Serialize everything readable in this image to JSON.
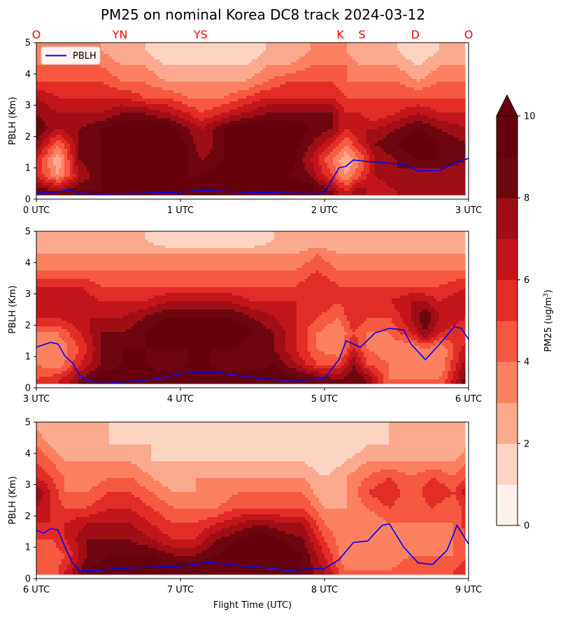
{
  "title": "PM25 on nominal Korea DC8 track 2024-03-12",
  "xlabel": "Flight Time (UTC)",
  "colorbar": {
    "label_prefix": "PM25 (ug/m",
    "label_sup": "3",
    "label_suffix": ")",
    "levels": [
      0,
      1,
      2,
      3,
      4,
      5,
      6,
      7,
      8,
      9,
      10
    ],
    "extend": "max",
    "ticks": [
      "0",
      "2",
      "4",
      "6",
      "8",
      "10"
    ],
    "colors": [
      "#fff0e9",
      "#fdd4c2",
      "#fcaa8e",
      "#fc8161",
      "#f65840",
      "#e22d26",
      "#c3161b",
      "#9f0e15",
      "#6d0610",
      "#67000d"
    ]
  },
  "waypoints": [
    {
      "label": "O",
      "hour": 0.0
    },
    {
      "label": "YN",
      "hour": 0.58
    },
    {
      "label": "YS",
      "hour": 1.14
    },
    {
      "label": "K",
      "hour": 2.11
    },
    {
      "label": "S",
      "hour": 2.26
    },
    {
      "label": "D",
      "hour": 2.63
    },
    {
      "label": "O",
      "hour": 3.0
    }
  ],
  "waypoint_color": "#ff0000",
  "pblh_color": "#0000ff",
  "chart_data": [
    {
      "type": "heatmap",
      "panel": 1,
      "xlim": [
        0,
        3
      ],
      "ylim": [
        0,
        5
      ],
      "ylabel": "PBLH (Km)",
      "xticks": [
        "0 UTC",
        "1 UTC",
        "2 UTC",
        "3 UTC"
      ],
      "yticks": [
        "0",
        "1",
        "2",
        "3",
        "4",
        "5"
      ],
      "legend": {
        "label": "PBLH",
        "position": "upper-left"
      },
      "pblh": {
        "name": "PBLH",
        "x": [
          0.0,
          0.15,
          0.22,
          0.3,
          0.45,
          0.6,
          0.8,
          1.0,
          1.15,
          1.3,
          1.5,
          1.7,
          1.9,
          2.0,
          2.05,
          2.1,
          2.15,
          2.2,
          2.3,
          2.45,
          2.55,
          2.65,
          2.8,
          2.9,
          3.0
        ],
        "y": [
          0.22,
          0.23,
          0.3,
          0.2,
          0.16,
          0.18,
          0.2,
          0.23,
          0.28,
          0.25,
          0.22,
          0.2,
          0.18,
          0.2,
          0.6,
          1.0,
          1.05,
          1.25,
          1.2,
          1.15,
          1.1,
          0.9,
          0.92,
          1.15,
          1.3
        ]
      },
      "pm25_field": {
        "x_hours": [
          0.0,
          0.15,
          0.3,
          0.45,
          0.6,
          0.75,
          0.9,
          1.05,
          1.15,
          1.3,
          1.45,
          1.6,
          1.75,
          1.9,
          2.05,
          2.15,
          2.25,
          2.35,
          2.5,
          2.65,
          2.8,
          3.0
        ],
        "z_km": [
          0.25,
          0.75,
          1.25,
          1.75,
          2.25,
          2.75,
          3.25,
          3.75,
          4.25,
          4.75
        ],
        "values": [
          [
            9,
            8,
            9,
            9,
            10,
            10,
            10,
            10,
            10,
            10,
            10,
            10,
            10,
            10,
            8,
            6,
            8,
            6,
            7,
            7,
            7,
            8
          ],
          [
            6,
            3,
            7,
            9,
            9,
            10,
            10,
            9,
            9,
            10,
            9,
            10,
            9,
            8,
            5,
            3,
            5,
            7,
            8,
            7,
            7,
            7
          ],
          [
            6,
            2,
            8,
            9,
            9,
            10,
            10,
            9,
            8,
            9,
            10,
            9,
            10,
            7,
            4,
            2,
            4,
            7,
            8,
            9,
            9,
            8
          ],
          [
            8,
            4,
            8,
            9,
            10,
            10,
            10,
            9,
            7,
            9,
            10,
            10,
            10,
            8,
            6,
            4,
            6,
            8,
            9,
            10,
            9,
            8
          ],
          [
            9,
            7,
            8,
            9,
            10,
            10,
            10,
            8,
            7,
            9,
            10,
            10,
            10,
            9,
            8,
            6,
            7,
            7,
            8,
            9,
            8,
            7
          ],
          [
            8,
            7,
            7,
            7,
            8,
            8,
            7,
            6,
            5,
            6,
            7,
            8,
            8,
            8,
            8,
            6,
            6,
            5,
            6,
            7,
            6,
            6
          ],
          [
            7,
            6,
            6,
            6,
            6,
            5,
            5,
            4,
            4,
            4,
            5,
            6,
            6,
            6,
            6,
            5,
            5,
            5,
            5,
            5,
            5,
            5
          ],
          [
            5,
            5,
            5,
            5,
            4,
            4,
            3,
            3,
            3,
            3,
            3,
            4,
            5,
            5,
            5,
            4,
            4,
            4,
            4,
            3,
            4,
            4
          ],
          [
            4,
            4,
            4,
            4,
            3,
            3,
            2,
            2,
            2,
            2,
            2,
            3,
            3,
            4,
            4,
            4,
            3,
            3,
            3,
            2,
            3,
            3
          ],
          [
            3,
            3,
            3,
            3,
            2,
            2,
            1,
            1,
            1,
            1,
            1,
            2,
            2,
            3,
            3,
            3,
            2,
            2,
            2,
            1,
            2,
            2
          ]
        ]
      }
    },
    {
      "type": "heatmap",
      "panel": 2,
      "xlim": [
        3,
        6
      ],
      "ylim": [
        0,
        5
      ],
      "ylabel": "PBLH (Km)",
      "xticks": [
        "3 UTC",
        "4 UTC",
        "5 UTC",
        "6 UTC"
      ],
      "yticks": [
        "0",
        "1",
        "2",
        "3",
        "4",
        "5"
      ],
      "pblh": {
        "name": "PBLH",
        "x": [
          3.0,
          3.1,
          3.15,
          3.2,
          3.25,
          3.3,
          3.35,
          3.45,
          3.55,
          3.7,
          3.85,
          4.0,
          4.15,
          4.25,
          4.4,
          4.55,
          4.7,
          4.85,
          5.0,
          5.1,
          5.15,
          5.25,
          5.35,
          5.45,
          5.55,
          5.6,
          5.7,
          5.8,
          5.9,
          5.95,
          6.0
        ],
        "y": [
          1.3,
          1.45,
          1.4,
          1.0,
          0.8,
          0.4,
          0.22,
          0.2,
          0.18,
          0.22,
          0.3,
          0.45,
          0.5,
          0.5,
          0.4,
          0.3,
          0.25,
          0.25,
          0.3,
          0.9,
          1.5,
          1.3,
          1.75,
          1.9,
          1.85,
          1.4,
          0.9,
          1.4,
          1.95,
          1.9,
          1.55
        ]
      },
      "pm25_field": {
        "x_hours": [
          3.0,
          3.15,
          3.3,
          3.45,
          3.6,
          3.75,
          3.9,
          4.05,
          4.2,
          4.35,
          4.5,
          4.65,
          4.8,
          4.95,
          5.1,
          5.2,
          5.3,
          5.45,
          5.6,
          5.7,
          5.8,
          6.0
        ],
        "z_km": [
          0.25,
          0.75,
          1.25,
          1.75,
          2.25,
          2.75,
          3.25,
          3.75,
          4.25,
          4.75
        ],
        "values": [
          [
            5,
            6,
            8,
            10,
            10,
            10,
            10,
            10,
            10,
            10,
            10,
            10,
            10,
            9,
            8,
            9,
            8,
            4,
            4,
            4,
            4,
            9
          ],
          [
            4,
            3,
            6,
            8,
            9,
            9,
            8,
            9,
            9,
            8,
            8,
            9,
            7,
            5,
            5,
            8,
            5,
            4,
            3,
            4,
            3,
            8
          ],
          [
            3,
            3,
            5,
            8,
            9,
            9,
            9,
            9,
            9,
            9,
            8,
            8,
            6,
            4,
            3,
            6,
            4,
            3,
            3,
            4,
            3,
            7
          ],
          [
            4,
            4,
            6,
            8,
            8,
            9,
            10,
            10,
            10,
            10,
            9,
            8,
            6,
            4,
            3,
            5,
            4,
            4,
            6,
            8,
            6,
            5
          ],
          [
            6,
            6,
            7,
            7,
            7,
            8,
            9,
            9,
            9,
            9,
            8,
            7,
            6,
            5,
            4,
            6,
            5,
            5,
            7,
            9,
            7,
            6
          ],
          [
            7,
            7,
            7,
            6,
            6,
            6,
            7,
            7,
            7,
            7,
            6,
            6,
            6,
            6,
            5,
            6,
            6,
            6,
            7,
            7,
            6,
            7
          ],
          [
            6,
            6,
            6,
            5,
            5,
            5,
            5,
            5,
            5,
            5,
            5,
            5,
            5,
            6,
            5,
            5,
            5,
            5,
            5,
            5,
            5,
            6
          ],
          [
            4,
            4,
            4,
            4,
            4,
            4,
            4,
            4,
            4,
            4,
            4,
            4,
            4,
            5,
            4,
            4,
            4,
            4,
            4,
            4,
            4,
            4
          ],
          [
            3,
            3,
            3,
            3,
            3,
            3,
            3,
            3,
            3,
            3,
            3,
            3,
            3,
            4,
            3,
            3,
            3,
            3,
            3,
            3,
            3,
            3
          ],
          [
            2,
            2,
            2,
            2,
            2,
            2,
            1,
            1,
            1,
            1,
            1,
            2,
            2,
            2,
            2,
            2,
            2,
            2,
            2,
            2,
            2,
            2
          ]
        ]
      }
    },
    {
      "type": "heatmap",
      "panel": 3,
      "xlim": [
        6,
        9
      ],
      "ylim": [
        0,
        5
      ],
      "ylabel": "PBLH (Km)",
      "xticks": [
        "6 UTC",
        "7 UTC",
        "8 UTC",
        "9 UTC"
      ],
      "yticks": [
        "0",
        "1",
        "2",
        "3",
        "4",
        "5"
      ],
      "pblh": {
        "name": "PBLH",
        "x": [
          6.0,
          6.05,
          6.1,
          6.15,
          6.2,
          6.25,
          6.3,
          6.4,
          6.5,
          6.7,
          6.9,
          7.0,
          7.1,
          7.2,
          7.4,
          7.6,
          7.75,
          7.85,
          8.0,
          8.1,
          8.2,
          8.3,
          8.4,
          8.45,
          8.55,
          8.65,
          8.75,
          8.85,
          8.92,
          9.0
        ],
        "y": [
          1.55,
          1.45,
          1.6,
          1.55,
          1.0,
          0.5,
          0.25,
          0.25,
          0.3,
          0.35,
          0.38,
          0.4,
          0.45,
          0.52,
          0.42,
          0.35,
          0.25,
          0.3,
          0.32,
          0.6,
          1.15,
          1.2,
          1.7,
          1.75,
          1.0,
          0.5,
          0.45,
          0.9,
          1.7,
          1.1
        ]
      },
      "pm25_field": {
        "x_hours": [
          6.0,
          6.1,
          6.2,
          6.35,
          6.5,
          6.65,
          6.8,
          6.95,
          7.1,
          7.25,
          7.4,
          7.55,
          7.7,
          7.85,
          8.0,
          8.15,
          8.3,
          8.45,
          8.6,
          8.75,
          8.9,
          9.0
        ],
        "z_km": [
          0.25,
          0.75,
          1.25,
          1.75,
          2.25,
          2.75,
          3.25,
          3.75,
          4.25,
          4.75
        ],
        "values": [
          [
            5,
            4,
            6,
            9,
            10,
            10,
            10,
            10,
            10,
            10,
            10,
            10,
            10,
            9,
            7,
            4,
            4,
            4,
            5,
            4,
            5,
            6
          ],
          [
            4,
            4,
            5,
            8,
            9,
            9,
            9,
            8,
            8,
            9,
            10,
            10,
            10,
            9,
            6,
            3,
            3,
            3,
            4,
            4,
            4,
            5
          ],
          [
            5,
            5,
            6,
            8,
            8,
            8,
            7,
            6,
            6,
            8,
            9,
            10,
            9,
            8,
            5,
            3,
            3,
            3,
            4,
            3,
            4,
            5
          ],
          [
            6,
            6,
            6,
            7,
            7,
            7,
            6,
            5,
            5,
            6,
            7,
            8,
            7,
            7,
            4,
            3,
            3,
            4,
            4,
            4,
            4,
            6
          ],
          [
            7,
            6,
            5,
            5,
            6,
            6,
            5,
            4,
            4,
            4,
            5,
            5,
            5,
            5,
            3,
            3,
            4,
            5,
            4,
            5,
            4,
            6
          ],
          [
            8,
            6,
            4,
            4,
            5,
            5,
            4,
            3,
            3,
            3,
            4,
            4,
            4,
            4,
            2,
            3,
            5,
            6,
            4,
            6,
            5,
            7
          ],
          [
            6,
            5,
            4,
            3,
            4,
            4,
            3,
            2,
            3,
            3,
            3,
            3,
            3,
            3,
            2,
            3,
            4,
            5,
            4,
            5,
            4,
            5
          ],
          [
            5,
            4,
            3,
            3,
            3,
            3,
            2,
            2,
            2,
            2,
            2,
            2,
            2,
            2,
            1,
            2,
            3,
            3,
            3,
            3,
            3,
            4
          ],
          [
            4,
            3,
            2,
            2,
            2,
            2,
            2,
            1,
            1,
            1,
            1,
            1,
            1,
            1,
            1,
            1,
            2,
            2,
            2,
            2,
            2,
            3
          ],
          [
            3,
            2,
            2,
            2,
            2,
            1,
            1,
            1,
            1,
            1,
            1,
            1,
            1,
            1,
            1,
            1,
            1,
            2,
            2,
            2,
            2,
            2
          ]
        ]
      }
    }
  ]
}
